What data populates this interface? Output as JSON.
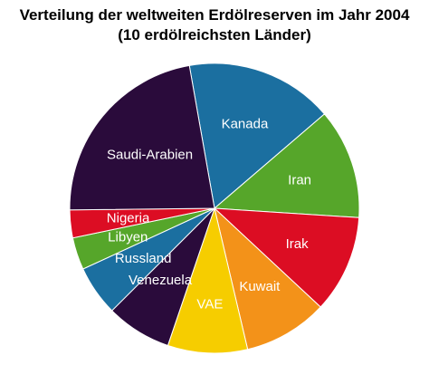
{
  "chart_data": {
    "type": "pie",
    "title": "Verteilung der weltweiten Erdölreserven im Jahr 2004",
    "subtitle": "(10 erdölreichsten Länder)",
    "slices": [
      {
        "label": "Kanada",
        "value": 16.5,
        "color": "#1b6fa0"
      },
      {
        "label": "Iran",
        "value": 12.3,
        "color": "#56a62a"
      },
      {
        "label": "Irak",
        "value": 10.9,
        "color": "#dc0d23"
      },
      {
        "label": "Kuwait",
        "value": 9.4,
        "color": "#f39219"
      },
      {
        "label": "VAE",
        "value": 8.9,
        "color": "#f6cd00"
      },
      {
        "label": "Venezuela",
        "value": 7.3,
        "color": "#2a0b3b"
      },
      {
        "label": "Russland",
        "value": 5.6,
        "color": "#1b6fa0"
      },
      {
        "label": "Libyen",
        "value": 3.6,
        "color": "#56a62a"
      },
      {
        "label": "Nigeria",
        "value": 3.1,
        "color": "#dc0d23"
      },
      {
        "label": "Saudi-Arabien",
        "value": 22.4,
        "color": "#2a0b3b"
      }
    ]
  }
}
